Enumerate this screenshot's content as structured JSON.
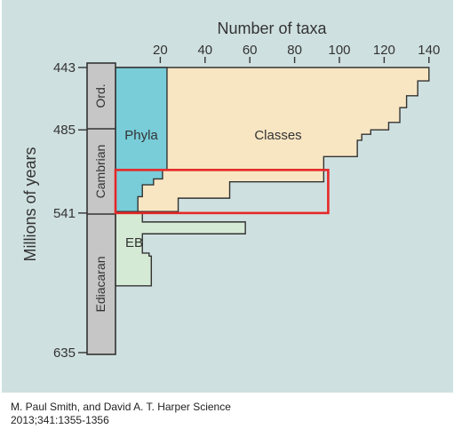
{
  "chart_data": {
    "type": "area",
    "xlabel": "Number of taxa",
    "ylabel": "Millions of years",
    "xlim": [
      0,
      140
    ],
    "x_ticks": [
      "20",
      "40",
      "60",
      "80",
      "100",
      "120",
      "140"
    ],
    "ylim": [
      443,
      635
    ],
    "y_ticks": [
      "443",
      "485",
      "541",
      "635"
    ],
    "periods": [
      "Ord.",
      "Cambrian",
      "Ediacaran"
    ],
    "series": [
      {
        "name": "Classes",
        "color": "#f8e6c3",
        "profile": [
          {
            "myr": 443,
            "taxa": 140
          },
          {
            "myr": 452,
            "taxa": 140
          },
          {
            "myr": 452,
            "taxa": 135
          },
          {
            "myr": 462,
            "taxa": 135
          },
          {
            "myr": 462,
            "taxa": 130
          },
          {
            "myr": 470,
            "taxa": 130
          },
          {
            "myr": 470,
            "taxa": 127
          },
          {
            "myr": 480,
            "taxa": 127
          },
          {
            "myr": 480,
            "taxa": 122
          },
          {
            "myr": 485,
            "taxa": 122
          },
          {
            "myr": 485,
            "taxa": 114
          },
          {
            "myr": 488,
            "taxa": 114
          },
          {
            "myr": 488,
            "taxa": 110
          },
          {
            "myr": 492,
            "taxa": 110
          },
          {
            "myr": 492,
            "taxa": 108
          },
          {
            "myr": 503,
            "taxa": 108
          },
          {
            "myr": 503,
            "taxa": 93
          },
          {
            "myr": 520,
            "taxa": 93
          },
          {
            "myr": 520,
            "taxa": 51
          },
          {
            "myr": 531,
            "taxa": 51
          },
          {
            "myr": 531,
            "taxa": 28
          },
          {
            "myr": 540,
            "taxa": 28
          },
          {
            "myr": 540,
            "taxa": 8
          }
        ]
      },
      {
        "name": "Phyla",
        "color": "#79cdd9",
        "profile": [
          {
            "myr": 443,
            "taxa": 23
          },
          {
            "myr": 512,
            "taxa": 23
          },
          {
            "myr": 512,
            "taxa": 21
          },
          {
            "myr": 518,
            "taxa": 21
          },
          {
            "myr": 518,
            "taxa": 17
          },
          {
            "myr": 522,
            "taxa": 17
          },
          {
            "myr": 522,
            "taxa": 12
          },
          {
            "myr": 530,
            "taxa": 12
          },
          {
            "myr": 530,
            "taxa": 10
          },
          {
            "myr": 540,
            "taxa": 10
          },
          {
            "myr": 540,
            "taxa": 8
          }
        ]
      },
      {
        "name": "EB",
        "color": "#d5ead5",
        "profile": [
          {
            "myr": 541,
            "taxa": 12
          },
          {
            "myr": 547,
            "taxa": 12
          },
          {
            "myr": 547,
            "taxa": 58
          },
          {
            "myr": 555,
            "taxa": 58
          },
          {
            "myr": 555,
            "taxa": 12
          },
          {
            "myr": 568,
            "taxa": 12
          },
          {
            "myr": 568,
            "taxa": 15
          },
          {
            "myr": 570,
            "taxa": 15
          },
          {
            "myr": 570,
            "taxa": 16
          },
          {
            "myr": 590,
            "taxa": 16
          }
        ]
      }
    ],
    "highlight": {
      "color": "#e62828",
      "x_range": [
        0,
        95
      ],
      "y_range": [
        512,
        541
      ]
    }
  },
  "footer": {
    "line1": "M. Paul Smith, and David A. T. Harper Science",
    "line2": "2013;341:1355-1356"
  }
}
